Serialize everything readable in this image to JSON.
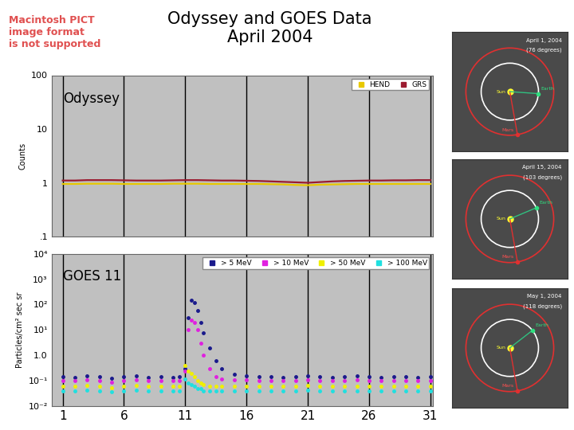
{
  "title": "Odyssey and GOES Data\nApril 2004",
  "notice": "Macintosh PICT\nimage format\nis not supported",
  "chart_data": [
    {
      "type": "line",
      "title": "Odyssey",
      "y_label": "Counts",
      "log": "y",
      "grid": "x",
      "legend": "upper right",
      "tick_labels": "y",
      "xlim": [
        0.1,
        31.2
      ],
      "xticks": [
        1,
        6,
        11,
        16,
        21,
        26,
        31
      ],
      "ylim": [
        0.1,
        100
      ],
      "yticks": [
        {
          "value": 0.1,
          "label": ".1"
        },
        1,
        10,
        100
      ],
      "x": [
        1,
        2,
        3,
        4,
        5,
        6,
        7,
        8,
        9,
        10,
        11,
        12,
        13,
        14,
        15,
        16,
        17,
        18,
        19,
        20,
        21,
        22,
        23,
        24,
        25,
        26,
        27,
        28,
        29,
        30,
        31
      ],
      "series": [
        {
          "name": "HEND",
          "color": "#e8c800",
          "line_style": "solid",
          "values": [
            0.95,
            0.95,
            0.96,
            0.96,
            0.96,
            0.95,
            0.95,
            0.95,
            0.95,
            0.96,
            0.96,
            0.96,
            0.95,
            0.95,
            0.95,
            0.95,
            0.95,
            0.94,
            0.93,
            0.91,
            0.9,
            0.92,
            0.93,
            0.94,
            0.95,
            0.95,
            0.95,
            0.95,
            0.95,
            0.95,
            0.95
          ]
        },
        {
          "name": "GRS",
          "color": "#9b1b30",
          "line_style": "solid",
          "values": [
            1.1,
            1.1,
            1.12,
            1.12,
            1.12,
            1.11,
            1.1,
            1.1,
            1.1,
            1.11,
            1.12,
            1.12,
            1.11,
            1.1,
            1.1,
            1.09,
            1.08,
            1.06,
            1.04,
            1.02,
            1.0,
            1.03,
            1.06,
            1.08,
            1.09,
            1.1,
            1.1,
            1.11,
            1.11,
            1.12,
            1.12
          ]
        }
      ]
    },
    {
      "type": "line",
      "title": "GOES 11",
      "y_label": "Particles/cm² sec sr",
      "log": "y",
      "grid": "x",
      "legend": "upper right",
      "xlim": [
        0.1,
        31.2
      ],
      "xticks": [
        1,
        6,
        11,
        16,
        21,
        26,
        31
      ],
      "ylim": [
        0.01,
        10000
      ],
      "yticks": [
        {
          "value": 0.01,
          "label": "10⁻²"
        },
        {
          "value": 0.1,
          "label": "10⁻¹"
        },
        {
          "value": 1,
          "label": "1.0"
        },
        {
          "value": 10,
          "label": "10¹"
        },
        {
          "value": 100,
          "label": "10²"
        },
        {
          "value": 1000,
          "label": "10³"
        },
        {
          "value": 10000,
          "label": "10⁴"
        }
      ],
      "x": [
        1,
        2,
        3,
        4,
        5,
        6,
        7,
        8,
        9,
        10,
        10.5,
        11,
        11.25,
        11.5,
        11.75,
        12,
        12.25,
        12.5,
        13,
        13.5,
        14,
        15,
        16,
        17,
        18,
        19,
        20,
        21,
        22,
        23,
        24,
        25,
        26,
        27,
        28,
        29,
        30,
        31
      ],
      "series": [
        {
          "name": "> 5 MeV",
          "color": "#1a1a8c",
          "marker": "dot",
          "values": [
            0.15,
            0.14,
            0.16,
            0.15,
            0.13,
            0.15,
            0.16,
            0.14,
            0.15,
            0.14,
            0.15,
            0.3,
            30,
            150,
            120,
            60,
            20,
            8,
            2,
            0.6,
            0.3,
            0.18,
            0.16,
            0.15,
            0.15,
            0.14,
            0.15,
            0.16,
            0.15,
            0.14,
            0.15,
            0.16,
            0.15,
            0.14,
            0.15,
            0.15,
            0.14,
            0.15
          ]
        },
        {
          "name": "> 10 MeV",
          "color": "#e020e0",
          "marker": "dot",
          "values": [
            0.1,
            0.1,
            0.11,
            0.1,
            0.09,
            0.1,
            0.11,
            0.1,
            0.1,
            0.1,
            0.1,
            0.25,
            10,
            25,
            20,
            10,
            3,
            1,
            0.3,
            0.15,
            0.12,
            0.11,
            0.11,
            0.1,
            0.1,
            0.1,
            0.1,
            0.11,
            0.1,
            0.1,
            0.1,
            0.11,
            0.1,
            0.1,
            0.1,
            0.1,
            0.1,
            0.1
          ]
        },
        {
          "name": "> 50 MeV",
          "color": "#f0f000",
          "marker": "dot",
          "values": [
            0.06,
            0.06,
            0.065,
            0.06,
            0.055,
            0.06,
            0.065,
            0.06,
            0.06,
            0.06,
            0.06,
            0.4,
            0.25,
            0.2,
            0.15,
            0.1,
            0.08,
            0.07,
            0.06,
            0.06,
            0.06,
            0.06,
            0.06,
            0.06,
            0.06,
            0.06,
            0.06,
            0.065,
            0.06,
            0.06,
            0.06,
            0.06,
            0.06,
            0.06,
            0.06,
            0.06,
            0.06,
            0.06
          ]
        },
        {
          "name": "> 100 MeV",
          "color": "#20e0e0",
          "marker": "dot",
          "values": [
            0.04,
            0.04,
            0.042,
            0.04,
            0.038,
            0.04,
            0.042,
            0.04,
            0.04,
            0.04,
            0.04,
            0.12,
            0.08,
            0.07,
            0.06,
            0.05,
            0.05,
            0.04,
            0.04,
            0.04,
            0.04,
            0.04,
            0.04,
            0.04,
            0.04,
            0.04,
            0.04,
            0.042,
            0.04,
            0.04,
            0.04,
            0.04,
            0.04,
            0.04,
            0.04,
            0.04,
            0.04,
            0.04
          ]
        }
      ]
    }
  ],
  "orbit_diagrams": {
    "labels": {
      "sun": "Sun",
      "earth": "Earth",
      "mars": "Mars"
    },
    "panels": [
      {
        "date": "April 1, 2004",
        "angle_label": "(76 degrees)",
        "angle": 76
      },
      {
        "date": "April 15, 2004",
        "angle_label": "(103 degrees)",
        "angle": 103
      },
      {
        "date": "May 1, 2004",
        "angle_label": "(118 degrees)",
        "angle": 118
      }
    ]
  }
}
